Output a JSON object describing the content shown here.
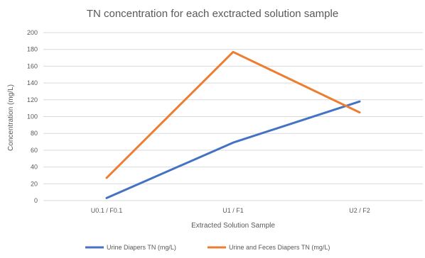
{
  "chart_data": {
    "type": "line",
    "title": "TN concentration for each exctracted solution sample",
    "xlabel": "Extracted Solution Sample",
    "ylabel": "Concentration (mg/L)",
    "categories": [
      "U0.1 / F0.1",
      "U1 / F1",
      "U2 / F2"
    ],
    "ylim": [
      0,
      200
    ],
    "yticks": [
      0,
      20,
      40,
      60,
      80,
      100,
      120,
      140,
      160,
      180,
      200
    ],
    "grid": true,
    "legend_position": "bottom",
    "series": [
      {
        "name": "Urine Diapers TN (mg/L)",
        "color": "#4472c4",
        "values": [
          3,
          69,
          118
        ]
      },
      {
        "name": "Urine and Feces Diapers TN (mg/L)",
        "color": "#ed7d31",
        "values": [
          27,
          177,
          105
        ]
      }
    ]
  }
}
